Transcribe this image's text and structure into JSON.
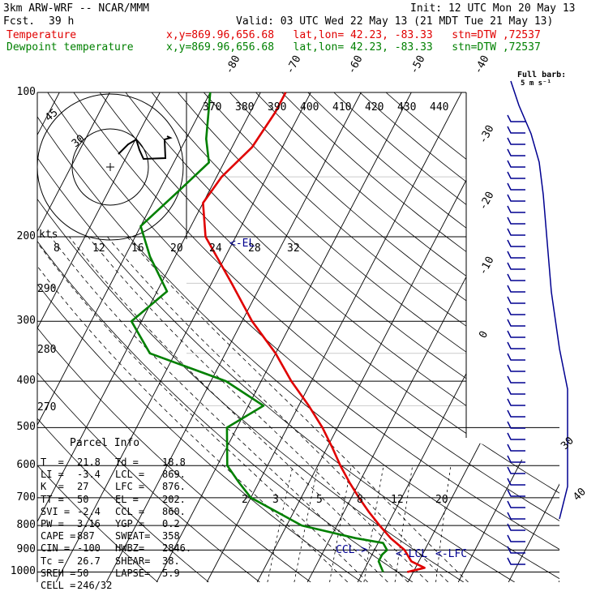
{
  "header": {
    "model": "3km ARW-WRF -- NCAR/MMM",
    "fcst_label": "Fcst.",
    "fcst_value": "39 h",
    "init": "Init: 12 UTC Mon 20 May 13",
    "valid": "Valid: 03 UTC Wed 22 May 13 (21 MDT Tue 21 May 13)",
    "temp_label": "Temperature",
    "dew_label": "Dewpoint temperature",
    "location": "x,y=869.96,656.68   lat,lon= 42.23, -83.33   stn=DTW ,72537"
  },
  "chart_data": {
    "type": "line",
    "title": "Skew-T log-P sounding",
    "y_axis": "pressure (hPa), log scale, reversed",
    "ylim": [
      1000,
      100
    ],
    "pressure_labels": [
      "100",
      "200",
      "300",
      "400",
      "500",
      "600",
      "700",
      "800",
      "900",
      "1000"
    ],
    "temperature_labels": [
      "-80",
      "-70",
      "-60",
      "-50",
      "-40",
      "-30",
      "-20",
      "-10",
      "0",
      "30",
      "40"
    ],
    "theta_labels": [
      "370",
      "380",
      "390",
      "400",
      "410",
      "420",
      "430",
      "440"
    ],
    "theta_side_labels": [
      "290",
      "280",
      "270"
    ],
    "mixing_ratio_labels": [
      "2",
      "3",
      "5",
      "8",
      "12",
      "20"
    ],
    "hodograph_axis_labels": [
      "8",
      "12",
      "16",
      "20",
      "24",
      "28",
      "32"
    ],
    "hodograph_ring_labels": [
      "45",
      "30"
    ],
    "hodograph_unit": "kts",
    "wind_speed_labels": [
      "30",
      "40"
    ],
    "el_marker": "<-EL",
    "ccl_marker": "CCL->",
    "lcl_marker": "<-LCL",
    "lfc_marker": "<-LFC",
    "barb_legend": "Full barb:",
    "barb_legend_unit": "5 m s⁻¹",
    "series": [
      {
        "name": "Temperature",
        "color": "#e00000",
        "points": [
          [
            1000,
            18.8
          ],
          [
            980,
            21.8
          ],
          [
            950,
            18.5
          ],
          [
            900,
            16
          ],
          [
            850,
            12
          ],
          [
            800,
            8.5
          ],
          [
            750,
            5
          ],
          [
            700,
            1.5
          ],
          [
            650,
            -2
          ],
          [
            600,
            -5.5
          ],
          [
            550,
            -9
          ],
          [
            500,
            -13
          ],
          [
            450,
            -18
          ],
          [
            400,
            -24
          ],
          [
            350,
            -30
          ],
          [
            300,
            -38
          ],
          [
            250,
            -46
          ],
          [
            200,
            -56
          ],
          [
            170,
            -60
          ],
          [
            150,
            -59
          ],
          [
            130,
            -56
          ],
          [
            110,
            -55
          ],
          [
            100,
            -55
          ]
        ]
      },
      {
        "name": "Dewpoint temperature",
        "color": "#008000",
        "points": [
          [
            1000,
            14
          ],
          [
            950,
            12
          ],
          [
            920,
            12
          ],
          [
            900,
            12.5
          ],
          [
            870,
            11
          ],
          [
            850,
            5
          ],
          [
            800,
            -7
          ],
          [
            700,
            -20
          ],
          [
            650,
            -24
          ],
          [
            600,
            -28
          ],
          [
            500,
            -32
          ],
          [
            450,
            -27
          ],
          [
            400,
            -37
          ],
          [
            350,
            -55
          ],
          [
            300,
            -62
          ],
          [
            260,
            -58
          ],
          [
            220,
            -65
          ],
          [
            190,
            -70
          ],
          [
            160,
            -66
          ],
          [
            140,
            -63
          ],
          [
            125,
            -66
          ],
          [
            100,
            -70
          ]
        ]
      }
    ]
  },
  "parcel_info": {
    "title": "Parcel Info",
    "rows": [
      [
        "T  =",
        "21.8",
        "Td =",
        "18.8"
      ],
      [
        "LI =",
        "-3.4",
        "LCL =",
        "869."
      ],
      [
        "K  =",
        "27",
        "LFC =",
        "876."
      ],
      [
        "TT =",
        "50",
        "EL =",
        "202."
      ],
      [
        "SVI =",
        "-2.4",
        "CCL =",
        "860."
      ],
      [
        "PW =",
        "3.16",
        "YGP =",
        "0.2"
      ],
      [
        "CAPE =",
        "887",
        "SWEAT=",
        "358"
      ],
      [
        "CIN =",
        "-100",
        "HWBZ=",
        "2846."
      ],
      [
        "Tc =",
        "26.7",
        "SHEAR=",
        "38."
      ],
      [
        "SREH =",
        "50",
        "LAPSE=",
        "5.9"
      ],
      [
        "CELL =",
        "246/32",
        "",
        ""
      ]
    ]
  }
}
